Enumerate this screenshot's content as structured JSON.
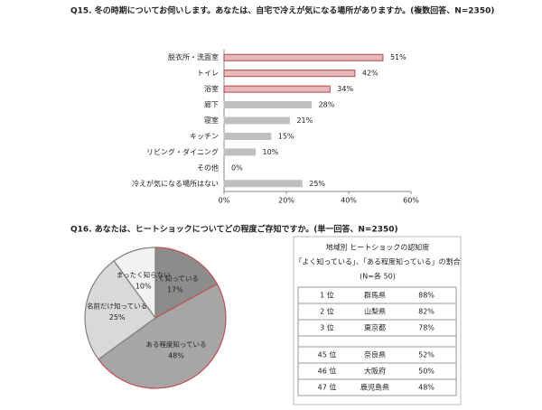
{
  "chart_data": [
    {
      "type": "barh",
      "title": "Q15. 冬の時期についてお伺いします。あなたは、自宅で冷えが気になる場所がありますか。(複数回答、N=2350)",
      "categories": [
        "脱衣所・洗面室",
        "トイレ",
        "浴室",
        "廊下",
        "寝室",
        "キッチン",
        "リビング・ダイニング",
        "その他",
        "冷えが気になる場所はない"
      ],
      "values": [
        51,
        42,
        34,
        28,
        21,
        15,
        10,
        0,
        25
      ],
      "value_labels": [
        "51%",
        "42%",
        "34%",
        "28%",
        "21%",
        "15%",
        "10%",
        "0%",
        "25%"
      ],
      "colors": [
        "#e6b9b8",
        "#e6b9b8",
        "#e6b9b8",
        "#bfbfbf",
        "#bfbfbf",
        "#bfbfbf",
        "#bfbfbf",
        "#bfbfbf",
        "#bfbfbf"
      ],
      "edge_colors": [
        "#b0464b",
        "#b0464b",
        "#b0464b",
        "#bfbfbf",
        "#bfbfbf",
        "#bfbfbf",
        "#bfbfbf",
        "#bfbfbf",
        "#bfbfbf"
      ],
      "xlim": [
        0,
        60
      ],
      "xticks": [
        {
          "value": 0,
          "label": "0%"
        },
        {
          "value": 20,
          "label": "20%"
        },
        {
          "value": 40,
          "label": "40%"
        },
        {
          "value": 60,
          "label": "60%"
        }
      ]
    },
    {
      "type": "pie",
      "title": "Q16. あなたは、ヒートショックについてどの程度ご存知ですか。(単一回答、N=2350)",
      "categories": [
        "よく知っている",
        "ある程度知っている",
        "名前だけ知っている",
        "まったく知らない"
      ],
      "values": [
        17,
        48,
        25,
        10
      ],
      "value_labels": [
        "17%",
        "48%",
        "25%",
        "10%"
      ],
      "colors": [
        "#8c8c8c",
        "#a6a6a6",
        "#d9d9d9",
        "#f2f2f2"
      ],
      "edge_colors": [
        "#c0504d",
        "#c0504d",
        "#808080",
        "#808080"
      ]
    }
  ],
  "table": {
    "title": "地域別 ヒートショックの認知度",
    "subtitle": "「よく知っている」、「ある程度知っている」の割合",
    "note": "(N=各 50)",
    "top_rows": [
      [
        "1 位",
        "群馬県",
        "88%"
      ],
      [
        "2 位",
        "山梨県",
        "82%"
      ],
      [
        "3 位",
        "東京都",
        "78%"
      ]
    ],
    "bottom_rows": [
      [
        "45 位",
        "奈良県",
        "52%"
      ],
      [
        "46 位",
        "大阪府",
        "50%"
      ],
      [
        "47 位",
        "鹿児島県",
        "48%"
      ]
    ]
  }
}
